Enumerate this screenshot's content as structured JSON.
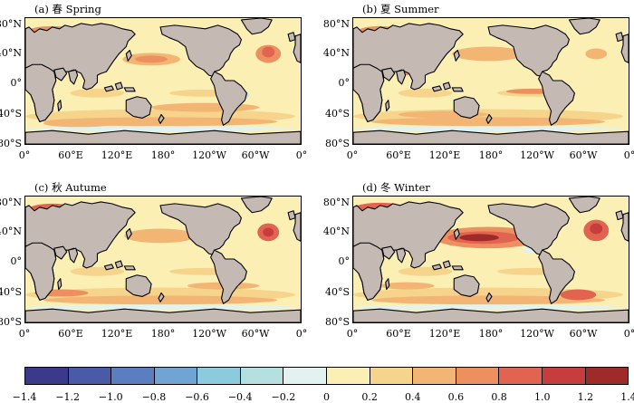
{
  "panels": [
    {
      "id": "a",
      "title": "(a) 春 Spring"
    },
    {
      "id": "b",
      "title": "(b) 夏 Summer"
    },
    {
      "id": "c",
      "title": "(c) 秋 Autume"
    },
    {
      "id": "d",
      "title": "(d) 冬 Winter"
    }
  ],
  "lat_ticks": [
    "80°N",
    "40°N",
    "0°",
    "40°S",
    "80°S"
  ],
  "lon_ticks": [
    "0°",
    "60°E",
    "120°E",
    "180°",
    "120°W",
    "60°W",
    "0°"
  ],
  "colorbar": {
    "ticks": [
      "−1.4",
      "−1.2",
      "−1.0",
      "−0.8",
      "−0.6",
      "−0.4",
      "−0.2",
      "0",
      "0.2",
      "0.4",
      "0.6",
      "0.8",
      "1.0",
      "1.2",
      "1.4"
    ],
    "colors": [
      "#3b3a8a",
      "#4a5aa6",
      "#5a7ec0",
      "#6fa4d4",
      "#8ccbdd",
      "#b5e0e0",
      "#e1f2f0",
      "#fbefb4",
      "#f6d48c",
      "#f2b574",
      "#ec9060",
      "#e06450",
      "#c73c3c",
      "#9e2a2a"
    ]
  },
  "colors": {
    "land": "#c5b9b4",
    "ocean_base": "#fbefb4",
    "warm_1": "#f6d48c",
    "warm_2": "#f2b574",
    "warm_3": "#ec9060",
    "warm_4": "#e06450",
    "warm_5": "#c73c3c",
    "warm_6": "#9e2a2a",
    "cool_1": "#e1f2f0",
    "cool_2": "#b5e0e0",
    "cool_3": "#8ccbdd"
  }
}
